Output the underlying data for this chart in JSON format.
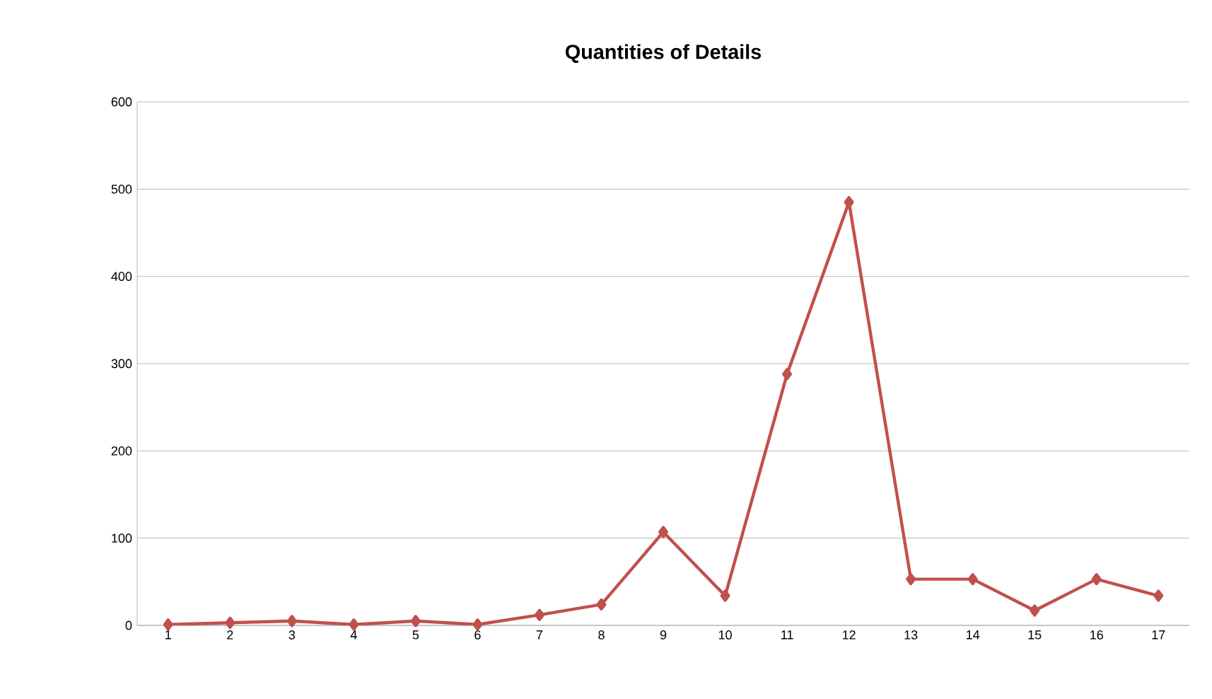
{
  "chart_data": {
    "type": "line",
    "title": "Quantities of Details",
    "categories": [
      "1",
      "2",
      "3",
      "4",
      "5",
      "6",
      "7",
      "8",
      "9",
      "10",
      "11",
      "12",
      "13",
      "14",
      "15",
      "16",
      "17"
    ],
    "series": [
      {
        "color": "#c0504d",
        "values": [
          1,
          3,
          5,
          1,
          5,
          1,
          12,
          24,
          107,
          34,
          288,
          485,
          53,
          53,
          17,
          53,
          34
        ]
      }
    ],
    "ylim": [
      0,
      600
    ],
    "yticks": [
      0,
      100,
      200,
      300,
      400,
      500,
      600
    ],
    "grid": "y",
    "marker": "diamond",
    "line_style": "solid"
  }
}
